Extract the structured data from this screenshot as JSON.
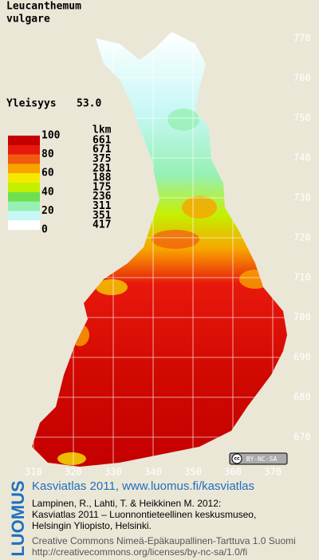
{
  "title_lines": [
    "Leucanthemum",
    "vulgare"
  ],
  "frequency": {
    "label": "Yleisyys",
    "value": "53.0"
  },
  "legend": {
    "count_header": "lkm",
    "scale_labels": [
      "100",
      "80",
      "60",
      "40",
      "20",
      "0"
    ],
    "classes": [
      {
        "color": "#c40000",
        "count": 661
      },
      {
        "color": "#e8180c",
        "count": 671
      },
      {
        "color": "#f25a10",
        "count": 375
      },
      {
        "color": "#f8a400",
        "count": 281
      },
      {
        "color": "#f4ea00",
        "count": 188
      },
      {
        "color": "#c4f000",
        "count": 175
      },
      {
        "color": "#6ee050",
        "count": 236
      },
      {
        "color": "#96f0b4",
        "count": 311
      },
      {
        "color": "#c8f8f6",
        "count": 351
      },
      {
        "color": "#ffffff",
        "count": 417
      }
    ]
  },
  "y_ticks": [
    770,
    760,
    750,
    740,
    730,
    720,
    710,
    700,
    690,
    680,
    670
  ],
  "x_ticks": [
    310,
    320,
    330,
    340,
    350,
    360,
    370
  ],
  "license_badge": "BY-NC-SA",
  "footer": {
    "logo": "LUOMUS",
    "heading": "Kasviatlas 2011, www.luomus.fi/kasviatlas",
    "citation": [
      "Lampinen, R., Lahti, T. & Heikkinen M. 2012:",
      "Kasviatlas 2011 – Luonnontieteellinen keskusmuseo,",
      "Helsingin Yliopisto, Helsinki."
    ],
    "license": [
      "Creative Commons Nimeä-Epäkaupallinen-Tarttuva 1.0 Suomi",
      "http://creativecommons.org/licenses/by-nc-sa/1.0/fi"
    ]
  }
}
